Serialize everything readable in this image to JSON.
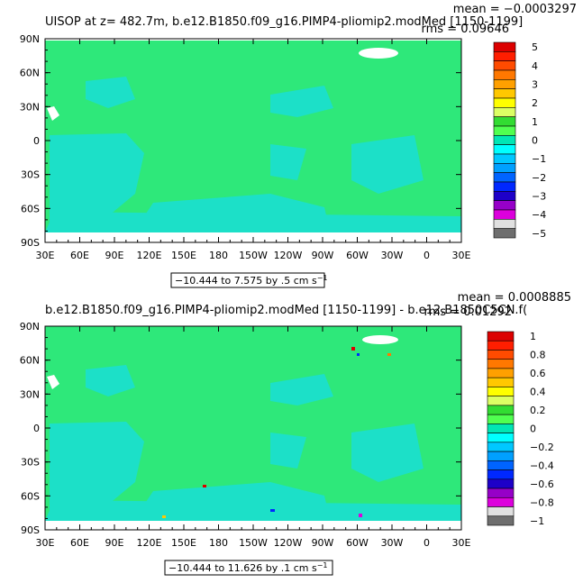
{
  "chart_data": [
    {
      "type": "heatmap",
      "title": "UISOP at z= 482.7m, b.e12.B1850.f09_g16.PIMP4-pliomip2.modMed [1150-1199]",
      "stats": [
        "mean = −0.0003297",
        "rms = 0.09646"
      ],
      "xticks": [
        "30E",
        "60E",
        "90E",
        "120E",
        "150E",
        "180",
        "150W",
        "120W",
        "90W",
        "60W",
        "30W",
        "0",
        "30E"
      ],
      "yticks": [
        "90N",
        "60N",
        "30N",
        "0",
        "30S",
        "60S",
        "90S"
      ],
      "xlim": [
        30,
        390
      ],
      "ylim": [
        -90,
        90
      ],
      "range_label": "−10.444 to 7.575 by .5 cm s",
      "range_unit_sup": "−1",
      "colorbar_labels": [
        "5",
        "4",
        "3",
        "2",
        "1",
        "0",
        "−1",
        "−2",
        "−3",
        "−4",
        "−5"
      ],
      "colorbar_colors": [
        "#dc0000",
        "#ff1e00",
        "#ff4b00",
        "#ff7800",
        "#ffa000",
        "#ffc800",
        "#ffff00",
        "#dcff64",
        "#32dc32",
        "#50ff50",
        "#00e6b4",
        "#00ffff",
        "#00c8ff",
        "#00a0ff",
        "#0064ff",
        "#0028ff",
        "#1e00c8",
        "#9600c8",
        "#dc00dc",
        "#e0e0e0",
        "#6e6e6e"
      ]
    },
    {
      "type": "heatmap",
      "title": "b.e12.B1850.f09_g16.PIMP4-pliomip2.modMed [1150-1199] - b.e12.B1850C5CN.f(",
      "stats": [
        "mean = 0.0008885",
        "rms = 0.01292"
      ],
      "xticks": [
        "30E",
        "60E",
        "90E",
        "120E",
        "150E",
        "180",
        "150W",
        "120W",
        "90W",
        "60W",
        "30W",
        "0",
        "30E"
      ],
      "yticks": [
        "90N",
        "60N",
        "30N",
        "0",
        "30S",
        "60S",
        "90S"
      ],
      "xlim": [
        30,
        390
      ],
      "ylim": [
        -90,
        90
      ],
      "range_label": "−10.444 to 11.626 by .1 cm s",
      "range_unit_sup": "−1",
      "colorbar_labels": [
        "1",
        "0.8",
        "0.6",
        "0.4",
        "0.2",
        "0",
        "−0.2",
        "−0.4",
        "−0.6",
        "−0.8",
        "−1"
      ],
      "colorbar_colors": [
        "#dc0000",
        "#ff1e00",
        "#ff4b00",
        "#ff7800",
        "#ffa000",
        "#ffc800",
        "#ffff00",
        "#dcff64",
        "#32dc32",
        "#50ff50",
        "#00e6b4",
        "#00ffff",
        "#00c8ff",
        "#00a0ff",
        "#0064ff",
        "#0028ff",
        "#1e00c8",
        "#9600c8",
        "#dc00dc",
        "#e0e0e0",
        "#6e6e6e"
      ]
    }
  ],
  "colors": {
    "ocean_main": "#2ee87a",
    "ocean_shelf": "#1ce0c8",
    "land_mask": "#ffffff"
  }
}
